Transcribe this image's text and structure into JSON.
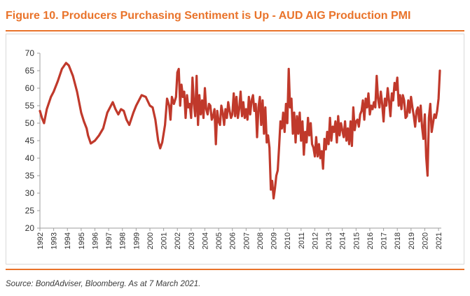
{
  "header": {
    "title": "Figure 10. Producers Purchasing Sentiment is Up - AUD AIG Production PMI"
  },
  "footer": {
    "source": "Source: BondAdviser, Bloomberg. As at 7 March 2021."
  },
  "colors": {
    "accent": "#e9732a",
    "series": "#c0392b",
    "axis": "#9e9e9e"
  },
  "chart_data": {
    "type": "line",
    "title": "",
    "xlabel": "",
    "ylabel": "",
    "ylim": [
      20,
      70
    ],
    "xlim": [
      1992.0,
      2021.2
    ],
    "grid": false,
    "yticks": [
      "20",
      "25",
      "30",
      "35",
      "40",
      "45",
      "50",
      "55",
      "60",
      "65",
      "70"
    ],
    "xticks": [
      "1992",
      "1993",
      "1994",
      "1995",
      "1996",
      "1997",
      "1998",
      "1999",
      "2000",
      "2001",
      "2002",
      "2003",
      "2004",
      "2005",
      "2006",
      "2007",
      "2008",
      "2009",
      "2010",
      "2011",
      "2012",
      "2013",
      "2014",
      "2015",
      "2016",
      "2017",
      "2018",
      "2019",
      "2020",
      "2021"
    ],
    "series": [
      {
        "name": "AUD AIG Production PMI",
        "x": [
          1992.0,
          1992.15,
          1992.3,
          1992.5,
          1992.8,
          1993.0,
          1993.3,
          1993.6,
          1993.9,
          1994.1,
          1994.4,
          1994.7,
          1995.0,
          1995.2,
          1995.4,
          1995.5,
          1995.7,
          1996.0,
          1996.3,
          1996.6,
          1996.9,
          1997.1,
          1997.3,
          1997.5,
          1997.7,
          1997.9,
          1998.1,
          1998.3,
          1998.5,
          1998.8,
          1999.0,
          1999.2,
          1999.4,
          1999.7,
          2000.0,
          2000.2,
          2000.4,
          2000.6,
          2000.75,
          2000.9,
          2001.0,
          2001.1,
          2001.25,
          2001.4,
          2001.5,
          2001.6,
          2001.75,
          2001.9,
          2002.0,
          2002.1,
          2002.2,
          2002.3,
          2002.4,
          2002.5,
          2002.6,
          2002.7,
          2002.8,
          2002.9,
          2003.0,
          2003.1,
          2003.2,
          2003.3,
          2003.4,
          2003.5,
          2003.6,
          2003.7,
          2003.8,
          2003.9,
          2004.0,
          2004.1,
          2004.2,
          2004.3,
          2004.4,
          2004.5,
          2004.6,
          2004.7,
          2004.8,
          2004.9,
          2005.0,
          2005.1,
          2005.2,
          2005.3,
          2005.4,
          2005.5,
          2005.6,
          2005.7,
          2005.8,
          2005.9,
          2006.0,
          2006.1,
          2006.2,
          2006.3,
          2006.4,
          2006.5,
          2006.6,
          2006.7,
          2006.8,
          2006.9,
          2007.0,
          2007.1,
          2007.2,
          2007.3,
          2007.4,
          2007.5,
          2007.6,
          2007.7,
          2007.8,
          2007.9,
          2008.0,
          2008.1,
          2008.2,
          2008.3,
          2008.4,
          2008.5,
          2008.6,
          2008.7,
          2008.8,
          2008.9,
          2009.0,
          2009.1,
          2009.2,
          2009.3,
          2009.4,
          2009.5,
          2009.6,
          2009.7,
          2009.8,
          2009.9,
          2010.0,
          2010.1,
          2010.2,
          2010.3,
          2010.4,
          2010.5,
          2010.6,
          2010.7,
          2010.8,
          2010.9,
          2011.0,
          2011.1,
          2011.2,
          2011.3,
          2011.4,
          2011.5,
          2011.6,
          2011.7,
          2011.8,
          2011.9,
          2012.0,
          2012.1,
          2012.2,
          2012.3,
          2012.4,
          2012.5,
          2012.6,
          2012.7,
          2012.8,
          2012.9,
          2013.0,
          2013.1,
          2013.2,
          2013.3,
          2013.4,
          2013.5,
          2013.6,
          2013.7,
          2013.8,
          2013.9,
          2014.0,
          2014.1,
          2014.2,
          2014.3,
          2014.4,
          2014.5,
          2014.6,
          2014.7,
          2014.8,
          2014.9,
          2015.0,
          2015.1,
          2015.2,
          2015.3,
          2015.4,
          2015.5,
          2015.6,
          2015.7,
          2015.8,
          2015.9,
          2016.0,
          2016.1,
          2016.2,
          2016.3,
          2016.4,
          2016.5,
          2016.6,
          2016.7,
          2016.8,
          2016.9,
          2017.0,
          2017.1,
          2017.2,
          2017.3,
          2017.4,
          2017.5,
          2017.6,
          2017.7,
          2017.8,
          2017.9,
          2018.0,
          2018.1,
          2018.2,
          2018.3,
          2018.4,
          2018.5,
          2018.6,
          2018.7,
          2018.8,
          2018.9,
          2019.0,
          2019.1,
          2019.2,
          2019.3,
          2019.4,
          2019.5,
          2019.6,
          2019.7,
          2019.8,
          2019.9,
          2020.0,
          2020.1,
          2020.2,
          2020.3,
          2020.4,
          2020.5,
          2020.6,
          2020.7,
          2020.8,
          2020.9,
          2021.0,
          2021.1
        ],
        "values": [
          53.5,
          51.5,
          50.0,
          54.0,
          57.5,
          59.0,
          62.0,
          65.5,
          67.2,
          66.5,
          63.5,
          59.0,
          53.0,
          50.5,
          48.5,
          46.5,
          44.2,
          45.0,
          46.5,
          48.5,
          53.0,
          54.5,
          56.0,
          54.0,
          52.5,
          54.0,
          53.5,
          51.0,
          49.5,
          53.0,
          55.0,
          56.5,
          58.0,
          57.5,
          55.0,
          54.5,
          51.0,
          45.0,
          42.8,
          44.5,
          47.0,
          49.5,
          57.0,
          55.0,
          51.0,
          57.5,
          55.5,
          57.5,
          64.5,
          65.5,
          55.0,
          61.0,
          57.5,
          59.0,
          51.5,
          58.0,
          54.5,
          55.5,
          51.5,
          63.0,
          55.5,
          52.0,
          63.5,
          49.5,
          58.0,
          52.5,
          56.5,
          51.5,
          60.0,
          54.0,
          52.5,
          55.5,
          55.0,
          51.0,
          52.0,
          54.0,
          44.0,
          53.5,
          50.5,
          49.5,
          55.0,
          53.0,
          49.5,
          54.0,
          51.5,
          56.0,
          53.5,
          51.5,
          52.5,
          58.5,
          52.0,
          57.5,
          51.5,
          54.0,
          59.0,
          52.0,
          56.0,
          51.5,
          54.0,
          51.0,
          57.5,
          52.5,
          56.5,
          58.0,
          53.5,
          55.5,
          46.0,
          54.5,
          57.5,
          49.5,
          56.5,
          47.0,
          54.5,
          44.5,
          46.5,
          43.0,
          31.0,
          33.5,
          28.5,
          31.5,
          35.0,
          36.5,
          43.0,
          50.5,
          48.5,
          53.0,
          47.5,
          55.5,
          50.0,
          65.5,
          54.5,
          57.0,
          47.0,
          53.0,
          44.5,
          52.0,
          47.0,
          53.0,
          45.0,
          50.5,
          41.0,
          47.5,
          44.5,
          51.5,
          46.5,
          50.0,
          44.0,
          43.0,
          40.5,
          46.0,
          40.5,
          44.0,
          40.0,
          42.0,
          37.0,
          45.5,
          42.5,
          47.5,
          44.0,
          51.5,
          45.0,
          49.0,
          47.5,
          50.5,
          44.5,
          52.0,
          46.5,
          50.0,
          48.0,
          46.0,
          50.5,
          45.0,
          48.5,
          44.0,
          50.5,
          43.5,
          54.5,
          48.0,
          50.5,
          51.0,
          49.0,
          52.5,
          53.5,
          56.5,
          51.0,
          57.0,
          54.5,
          58.5,
          52.5,
          55.0,
          54.0,
          56.0,
          54.5,
          63.5,
          57.0,
          54.5,
          59.0,
          55.5,
          50.5,
          57.0,
          55.0,
          60.0,
          56.5,
          52.0,
          58.5,
          56.5,
          61.5,
          59.5,
          63.0,
          55.0,
          58.0,
          54.0,
          58.0,
          56.5,
          51.5,
          52.0,
          56.5,
          53.0,
          57.5,
          54.5,
          52.0,
          49.0,
          53.5,
          54.5,
          50.5,
          55.0,
          49.0,
          45.5,
          52.5,
          40.5,
          35.0,
          51.5,
          55.5,
          47.5,
          50.0,
          52.5,
          51.5,
          53.5,
          57.0,
          65.0
        ]
      }
    ]
  }
}
